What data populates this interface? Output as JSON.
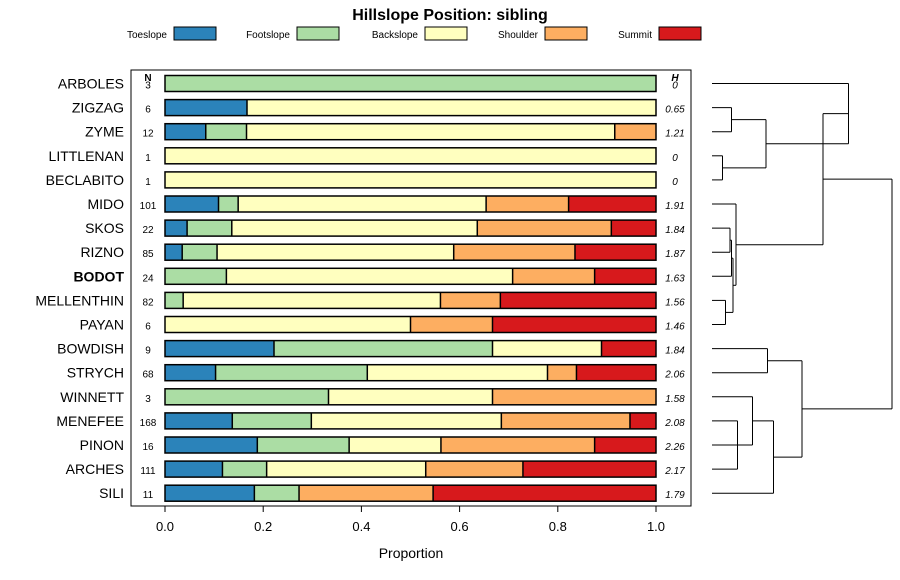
{
  "chart_data": {
    "type": "bar",
    "orientation": "horizontal",
    "stacked": true,
    "title": "Hillslope Position: sibling",
    "xlabel": "Proportion",
    "xlim": [
      0,
      1
    ],
    "xticks": [
      "0.0",
      "0.2",
      "0.4",
      "0.6",
      "0.8",
      "1.0"
    ],
    "n_header": "N",
    "h_header": "H",
    "highlight": "BODOT",
    "legend": [
      {
        "name": "Toeslope",
        "color": "#2b83ba"
      },
      {
        "name": "Footslope",
        "color": "#abdda4"
      },
      {
        "name": "Backslope",
        "color": "#ffffbf"
      },
      {
        "name": "Shoulder",
        "color": "#fdae61"
      },
      {
        "name": "Summit",
        "color": "#d7191c"
      }
    ],
    "rows": [
      {
        "name": "ARBOLES",
        "n": "3",
        "h": "0",
        "values": [
          0,
          1.0,
          0,
          0,
          0
        ]
      },
      {
        "name": "ZIGZAG",
        "n": "6",
        "h": "0.65",
        "values": [
          0.167,
          0,
          0.833,
          0,
          0
        ]
      },
      {
        "name": "ZYME",
        "n": "12",
        "h": "1.21",
        "values": [
          0.083,
          0.083,
          0.75,
          0.084,
          0
        ]
      },
      {
        "name": "LITTLENAN",
        "n": "1",
        "h": "0",
        "values": [
          0,
          0,
          1.0,
          0,
          0
        ]
      },
      {
        "name": "BECLABITO",
        "n": "1",
        "h": "0",
        "values": [
          0,
          0,
          1.0,
          0,
          0
        ]
      },
      {
        "name": "MIDO",
        "n": "101",
        "h": "1.91",
        "values": [
          0.109,
          0.04,
          0.505,
          0.168,
          0.178
        ]
      },
      {
        "name": "SKOS",
        "n": "22",
        "h": "1.84",
        "values": [
          0.045,
          0.091,
          0.5,
          0.273,
          0.091
        ]
      },
      {
        "name": "RIZNO",
        "n": "85",
        "h": "1.87",
        "values": [
          0.035,
          0.071,
          0.482,
          0.247,
          0.165
        ]
      },
      {
        "name": "BODOT",
        "n": "24",
        "h": "1.63",
        "values": [
          0,
          0.125,
          0.583,
          0.167,
          0.125
        ]
      },
      {
        "name": "MELLENTHIN",
        "n": "82",
        "h": "1.56",
        "values": [
          0,
          0.037,
          0.524,
          0.122,
          0.317
        ]
      },
      {
        "name": "PAYAN",
        "n": "6",
        "h": "1.46",
        "values": [
          0,
          0,
          0.5,
          0.167,
          0.333
        ]
      },
      {
        "name": "BOWDISH",
        "n": "9",
        "h": "1.84",
        "values": [
          0.222,
          0.445,
          0.222,
          0,
          0.111
        ]
      },
      {
        "name": "STRYCH",
        "n": "68",
        "h": "2.06",
        "values": [
          0.103,
          0.309,
          0.367,
          0.059,
          0.162
        ]
      },
      {
        "name": "WINNETT",
        "n": "3",
        "h": "1.58",
        "values": [
          0,
          0.333,
          0.334,
          0.333,
          0
        ]
      },
      {
        "name": "MENEFEE",
        "n": "168",
        "h": "2.08",
        "values": [
          0.137,
          0.161,
          0.387,
          0.262,
          0.053
        ]
      },
      {
        "name": "PINON",
        "n": "16",
        "h": "2.26",
        "values": [
          0.188,
          0.187,
          0.187,
          0.313,
          0.125
        ]
      },
      {
        "name": "ARCHES",
        "n": "111",
        "h": "2.17",
        "values": [
          0.117,
          0.09,
          0.324,
          0.198,
          0.271
        ]
      },
      {
        "name": "SILI",
        "n": "11",
        "h": "1.79",
        "values": [
          0.182,
          0.091,
          0,
          0.273,
          0.454
        ]
      }
    ],
    "dendrogram": {
      "merges": [
        {
          "a": 1,
          "b": 2,
          "h": 0.13
        },
        {
          "a": 3,
          "b": 4,
          "h": 0.07
        },
        {
          "a": -1,
          "b": -2,
          "h": 0.36
        },
        {
          "a": 6,
          "b": 7,
          "h": 0.12
        },
        {
          "a": 9,
          "b": 10,
          "h": 0.09
        },
        {
          "a": 8,
          "b": -4,
          "h": 0.13
        },
        {
          "a": -6,
          "b": -5,
          "h": 0.14
        },
        {
          "a": 5,
          "b": -7,
          "h": 0.16
        },
        {
          "a": 0,
          "b": -3,
          "h": 0.91
        },
        {
          "a": 14,
          "b": 16,
          "h": 0.17
        },
        {
          "a": 15,
          "b": -10,
          "h": 0.2
        },
        {
          "a": 13,
          "b": -11,
          "h": 0.27
        },
        {
          "a": 11,
          "b": 12,
          "h": 0.37
        },
        {
          "a": 17,
          "b": -12,
          "h": 0.41
        },
        {
          "a": -13,
          "b": -14,
          "h": 0.6
        },
        {
          "a": -8,
          "b": -9,
          "h": 0.74
        },
        {
          "a": -16,
          "b": -15,
          "h": 1.2
        }
      ]
    }
  }
}
